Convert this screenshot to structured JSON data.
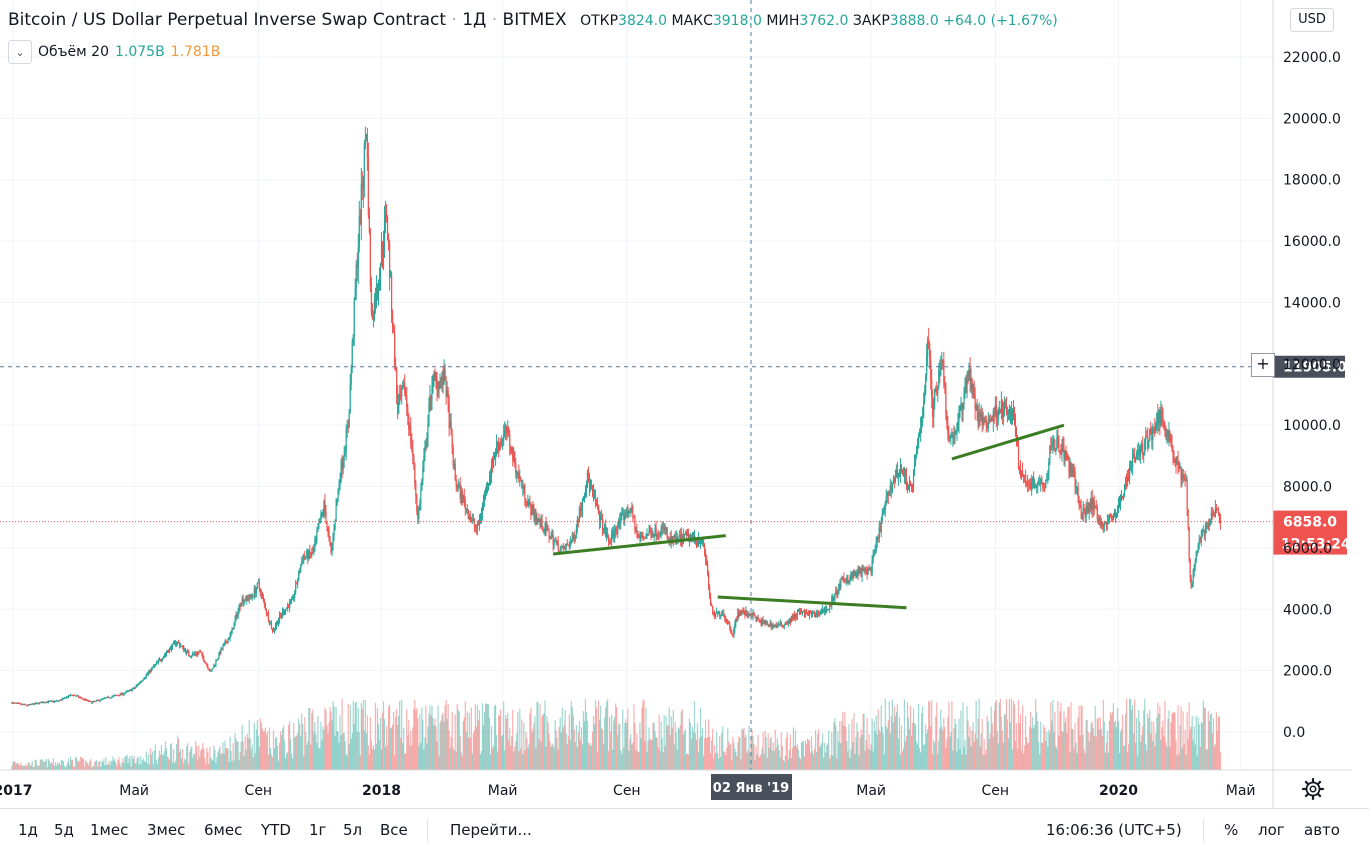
{
  "header": {
    "symbol": "Bitcoin / US Dollar Perpetual Inverse Swap Contract",
    "interval": "1Д",
    "exchange": "BITMEX",
    "o_label": "ОТКР",
    "o_value": "3824.0",
    "h_label": "МАКС",
    "h_value": "3918.0",
    "l_label": "МИН",
    "l_value": "3762.0",
    "c_label": "ЗАКР",
    "c_value": "3888.0",
    "change": "+64.0 (+1.67%)"
  },
  "volume_legend": {
    "name": "Объём 20",
    "value1": "1.075B",
    "value2": "1.781B"
  },
  "currency": "USD",
  "price_axis": {
    "ticks": [
      "22000.0",
      "20000.0",
      "18000.0",
      "16000.0",
      "14000.0",
      "12000.0",
      "10000.0",
      "8000.0",
      "6000.0",
      "4000.0",
      "2000.0",
      "0.0"
    ],
    "crosshair_price": "11905.0",
    "last_price": "6858.0",
    "countdown": "12:53:24"
  },
  "time_axis": {
    "ticks": [
      "2017",
      "Май",
      "Сен",
      "2018",
      "Май",
      "Сен",
      "Май",
      "Сен",
      "2020",
      "Май"
    ],
    "crosshair_date": "02 Янв '19"
  },
  "bottom_bar": {
    "ranges": [
      "1д",
      "5д",
      "1мес",
      "3мес",
      "6мес",
      "YTD",
      "1г",
      "5л",
      "Все"
    ],
    "goto": "Перейти...",
    "clock": "16:06:36 (UTC+5)",
    "percent": "%",
    "log": "лог",
    "auto": "авто"
  },
  "colors": {
    "up": "#26a69a",
    "down": "#ef5350",
    "trendline": "#3b7d23",
    "crosshair": "#9598a1",
    "last_price": "#ef5350"
  },
  "icons": {
    "settings": "gear-icon",
    "collapse": "chevron-down-icon",
    "add": "plus-icon"
  },
  "chart_data": {
    "type": "candlestick",
    "ylim": [
      -1000,
      23000
    ],
    "series_close": [
      [
        "2016-12-31",
        950
      ],
      [
        "2017-01-15",
        870
      ],
      [
        "2017-02-01",
        980
      ],
      [
        "2017-02-15",
        1010
      ],
      [
        "2017-03-01",
        1220
      ],
      [
        "2017-03-20",
        960
      ],
      [
        "2017-04-01",
        1090
      ],
      [
        "2017-04-20",
        1250
      ],
      [
        "2017-05-01",
        1420
      ],
      [
        "2017-05-10",
        1750
      ],
      [
        "2017-05-25",
        2300
      ],
      [
        "2017-06-05",
        2700
      ],
      [
        "2017-06-12",
        2950
      ],
      [
        "2017-06-25",
        2500
      ],
      [
        "2017-07-05",
        2600
      ],
      [
        "2017-07-16",
        1950
      ],
      [
        "2017-07-25",
        2600
      ],
      [
        "2017-08-05",
        3200
      ],
      [
        "2017-08-15",
        4300
      ],
      [
        "2017-08-25",
        4400
      ],
      [
        "2017-09-01",
        4800
      ],
      [
        "2017-09-15",
        3300
      ],
      [
        "2017-09-25",
        3900
      ],
      [
        "2017-10-05",
        4300
      ],
      [
        "2017-10-15",
        5700
      ],
      [
        "2017-10-25",
        5800
      ],
      [
        "2017-11-05",
        7400
      ],
      [
        "2017-11-12",
        5800
      ],
      [
        "2017-11-20",
        8200
      ],
      [
        "2017-11-29",
        10000
      ],
      [
        "2017-12-07",
        15000
      ],
      [
        "2017-12-17",
        19800
      ],
      [
        "2017-12-22",
        13500
      ],
      [
        "2017-12-28",
        14500
      ],
      [
        "2018-01-06",
        17000
      ],
      [
        "2018-01-10",
        14500
      ],
      [
        "2018-01-17",
        10500
      ],
      [
        "2018-01-24",
        11200
      ],
      [
        "2018-02-01",
        9000
      ],
      [
        "2018-02-06",
        6900
      ],
      [
        "2018-02-12",
        8800
      ],
      [
        "2018-02-20",
        11400
      ],
      [
        "2018-03-05",
        11500
      ],
      [
        "2018-03-15",
        8200
      ],
      [
        "2018-03-31",
        6900
      ],
      [
        "2018-04-06",
        6600
      ],
      [
        "2018-04-15",
        8000
      ],
      [
        "2018-04-25",
        9300
      ],
      [
        "2018-05-05",
        9800
      ],
      [
        "2018-05-15",
        8500
      ],
      [
        "2018-05-28",
        7300
      ],
      [
        "2018-06-10",
        6700
      ],
      [
        "2018-06-24",
        6100
      ],
      [
        "2018-06-29",
        5900
      ],
      [
        "2018-07-10",
        6300
      ],
      [
        "2018-07-24",
        8300
      ],
      [
        "2018-08-05",
        7000
      ],
      [
        "2018-08-14",
        6200
      ],
      [
        "2018-08-28",
        7000
      ],
      [
        "2018-09-05",
        7300
      ],
      [
        "2018-09-12",
        6300
      ],
      [
        "2018-09-25",
        6500
      ],
      [
        "2018-10-10",
        6600
      ],
      [
        "2018-10-11",
        6200
      ],
      [
        "2018-11-01",
        6350
      ],
      [
        "2018-11-14",
        6300
      ],
      [
        "2018-11-19",
        5500
      ],
      [
        "2018-11-22",
        4400
      ],
      [
        "2018-11-25",
        3800
      ],
      [
        "2018-12-05",
        3900
      ],
      [
        "2018-12-15",
        3200
      ],
      [
        "2018-12-20",
        3900
      ],
      [
        "2019-01-02",
        3850
      ],
      [
        "2019-01-10",
        3600
      ],
      [
        "2019-01-28",
        3450
      ],
      [
        "2019-02-08",
        3600
      ],
      [
        "2019-02-18",
        3900
      ],
      [
        "2019-03-05",
        3800
      ],
      [
        "2019-03-20",
        4050
      ],
      [
        "2019-04-02",
        4900
      ],
      [
        "2019-04-15",
        5150
      ],
      [
        "2019-05-01",
        5300
      ],
      [
        "2019-05-12",
        7000
      ],
      [
        "2019-05-20",
        8000
      ],
      [
        "2019-05-30",
        8600
      ],
      [
        "2019-06-10",
        7900
      ],
      [
        "2019-06-22",
        10700
      ],
      [
        "2019-06-26",
        12900
      ],
      [
        "2019-07-01",
        10500
      ],
      [
        "2019-07-10",
        12300
      ],
      [
        "2019-07-17",
        9500
      ],
      [
        "2019-07-25",
        9900
      ],
      [
        "2019-08-06",
        11800
      ],
      [
        "2019-08-15",
        10200
      ],
      [
        "2019-08-25",
        10100
      ],
      [
        "2019-09-05",
        10600
      ],
      [
        "2019-09-20",
        10200
      ],
      [
        "2019-09-25",
        8500
      ],
      [
        "2019-10-05",
        8100
      ],
      [
        "2019-10-22",
        8200
      ],
      [
        "2019-10-26",
        9500
      ],
      [
        "2019-11-05",
        9300
      ],
      [
        "2019-11-20",
        8100
      ],
      [
        "2019-11-25",
        7000
      ],
      [
        "2019-12-05",
        7500
      ],
      [
        "2019-12-17",
        6700
      ],
      [
        "2019-12-31",
        7200
      ],
      [
        "2020-01-14",
        8800
      ],
      [
        "2020-01-28",
        9400
      ],
      [
        "2020-02-12",
        10350
      ],
      [
        "2020-02-20",
        9700
      ],
      [
        "2020-02-26",
        8800
      ],
      [
        "2020-03-08",
        8100
      ],
      [
        "2020-03-12",
        5000
      ],
      [
        "2020-03-13",
        4800
      ],
      [
        "2020-03-20",
        6200
      ],
      [
        "2020-04-06",
        7200
      ],
      [
        "2020-04-11",
        6858
      ]
    ],
    "trendlines": [
      {
        "x1": "2018-06-20",
        "y1": 5800,
        "x2": "2018-12-08",
        "y2": 6400
      },
      {
        "x1": "2018-11-30",
        "y1": 4400,
        "x2": "2019-06-05",
        "y2": 4050
      },
      {
        "x1": "2019-07-20",
        "y1": 8900,
        "x2": "2019-11-08",
        "y2": 10000
      }
    ]
  }
}
